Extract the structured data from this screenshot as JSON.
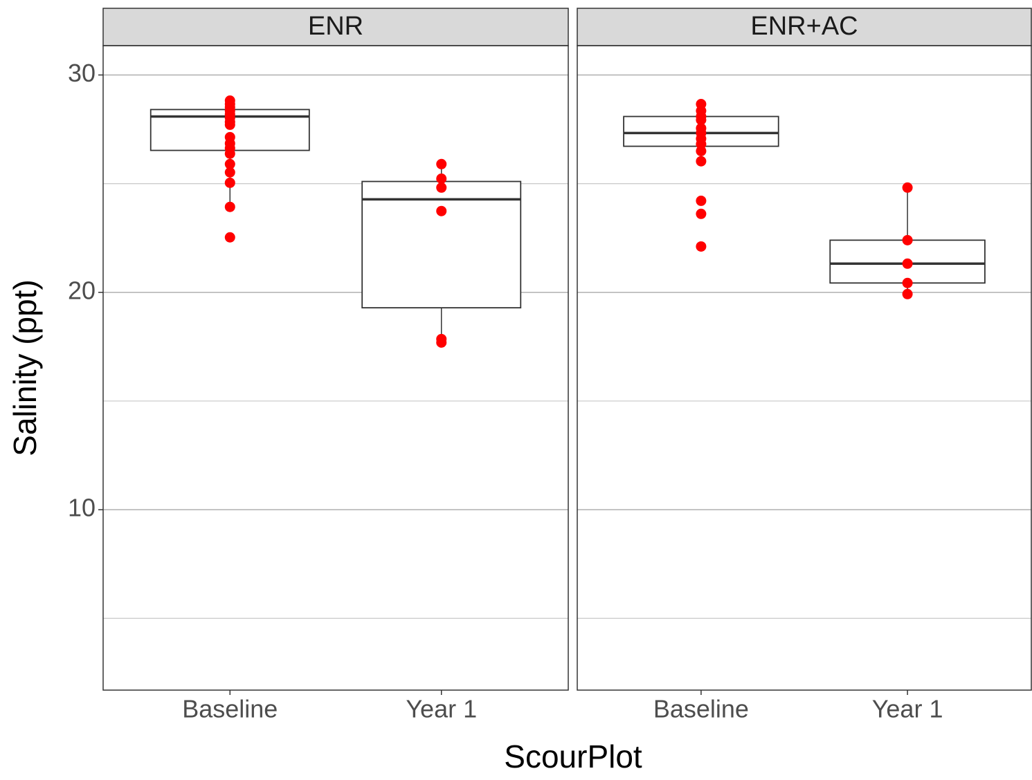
{
  "chart_data": {
    "type": "boxplot",
    "x_label": "ScourPlot",
    "y_label": "Salinity (ppt)",
    "ylim": [
      1.7,
      31.35
    ],
    "yticks": [
      10,
      20,
      30
    ],
    "minor_yticks": [
      5,
      15,
      25
    ],
    "grid": true,
    "point_color": "#ff0000",
    "box_color": "#333333",
    "facets": [
      {
        "title": "ENR",
        "categories": [
          "Baseline",
          "Year 1"
        ],
        "boxes": [
          {
            "whisker_low": 23.93,
            "q1": 26.53,
            "median": 28.09,
            "q3": 28.41,
            "whisker_high": 28.82
          },
          {
            "whisker_low": 17.85,
            "q1": 19.29,
            "median": 24.28,
            "q3": 25.1,
            "whisker_high": 25.9
          }
        ],
        "points": [
          [
            28.82,
            28.66,
            28.51,
            28.35,
            28.19,
            28.03,
            27.84,
            27.71,
            27.14,
            26.85,
            26.63,
            26.38,
            25.9,
            25.52,
            25.04,
            23.93,
            22.53
          ],
          [
            25.9,
            25.23,
            24.82,
            23.74,
            17.85,
            17.69
          ]
        ]
      },
      {
        "title": "ENR+AC",
        "categories": [
          "Baseline",
          "Year 1"
        ],
        "boxes": [
          {
            "whisker_low": 26.03,
            "q1": 26.72,
            "median": 27.33,
            "q3": 28.09,
            "whisker_high": 28.66
          },
          {
            "whisker_low": 19.92,
            "q1": 20.43,
            "median": 21.32,
            "q3": 22.4,
            "whisker_high": 24.82
          }
        ],
        "points": [
          [
            28.66,
            28.35,
            28.09,
            27.93,
            27.55,
            27.33,
            27.07,
            26.82,
            26.5,
            26.03,
            24.21,
            23.61,
            22.11
          ],
          [
            24.82,
            22.4,
            21.32,
            20.43,
            19.92
          ]
        ]
      }
    ]
  }
}
